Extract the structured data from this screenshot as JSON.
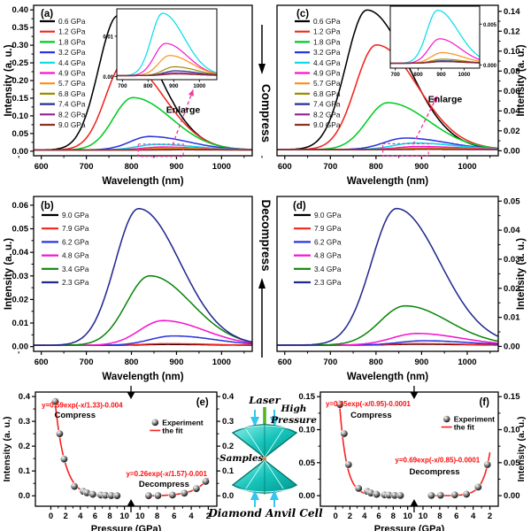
{
  "middle": {
    "compress": "Compress",
    "decompress": "Decompress"
  },
  "dac": {
    "laser": "Laser",
    "high_pressure": [
      "High",
      "Pressure"
    ],
    "samples": "Samples",
    "caption": "Diamond Anvil Cell"
  },
  "chart_data": [
    {
      "id": "a",
      "type": "line",
      "panel_label": "(a)",
      "xlabel": "Wavelength (nm)",
      "ylabel": "Intensity (a. u.)",
      "y_side": "left",
      "xlim": [
        583,
        1068
      ],
      "x_ticks": [
        600,
        700,
        800,
        900,
        1000
      ],
      "ylim": [
        -0.013,
        0.413
      ],
      "y_ticks": [
        0.0,
        0.05,
        0.1,
        0.15,
        0.2,
        0.25,
        0.3,
        0.35,
        0.4
      ],
      "y_decimals": 2,
      "sigma": [
        43,
        85
      ],
      "series": [
        {
          "label": "0.6 GPa",
          "color": "#000000",
          "peak_nm": 770,
          "peak_intensity": 0.38
        },
        {
          "label": "1.2 GPa",
          "color": "#f2231e",
          "peak_nm": 786,
          "peak_intensity": 0.25
        },
        {
          "label": "1.8 GPa",
          "color": "#00cc22",
          "peak_nm": 803,
          "peak_intensity": 0.148
        },
        {
          "label": "3.2 GPa",
          "color": "#2d35dd",
          "peak_nm": 840,
          "peak_intensity": 0.038
        },
        {
          "label": "4.4 GPa",
          "color": "#00dce8",
          "peak_nm": 856,
          "peak_intensity": 0.0155
        },
        {
          "label": "4.9 GPa",
          "color": "#f516cc",
          "peak_nm": 868,
          "peak_intensity": 0.008
        },
        {
          "label": "5.7 GPa",
          "color": "#ff8e1b",
          "peak_nm": 884,
          "peak_intensity": 0.005
        },
        {
          "label": "6.8 GPa",
          "color": "#9c8c00",
          "peak_nm": 902,
          "peak_intensity": 0.0022
        },
        {
          "label": "7.4 GPa",
          "color": "#26308f",
          "peak_nm": 906,
          "peak_intensity": 0.0012
        },
        {
          "label": "8.2 GPa",
          "color": "#922092",
          "peak_nm": 906,
          "peak_intensity": 0.0007
        },
        {
          "label": "9.0 GPa",
          "color": "#8c3128",
          "peak_nm": 906,
          "peak_intensity": 0.0004
        }
      ],
      "inset": {
        "xlim": [
          678,
          1068
        ],
        "x_ticks": [
          700,
          800,
          900,
          1000
        ],
        "ylim": [
          -0.0008,
          0.0168
        ],
        "y_ticks": [
          0.0,
          0.01
        ],
        "y_decimals": 2,
        "y_side": "left",
        "series_from": 4
      },
      "enlarge_label": "Enlarge",
      "zoom_box_nm": [
        815,
        915
      ]
    },
    {
      "id": "c",
      "type": "line",
      "panel_label": "(c)",
      "xlabel": "Wavelength (nm)",
      "ylabel": "Intensity (a. u.)",
      "y_side": "right",
      "xlim": [
        583,
        1068
      ],
      "x_ticks": [
        600,
        700,
        800,
        900,
        1000
      ],
      "ylim": [
        -0.005,
        0.146
      ],
      "y_ticks": [
        0.0,
        0.02,
        0.04,
        0.06,
        0.08,
        0.1,
        0.12,
        0.14
      ],
      "y_decimals": 2,
      "sigma": [
        46,
        90
      ],
      "series": [
        {
          "label": "0.6 GPa",
          "color": "#000000",
          "peak_nm": 780,
          "peak_intensity": 0.14
        },
        {
          "label": "1.2 GPa",
          "color": "#f2231e",
          "peak_nm": 801,
          "peak_intensity": 0.105
        },
        {
          "label": "1.8 GPa",
          "color": "#00cc22",
          "peak_nm": 826,
          "peak_intensity": 0.047
        },
        {
          "label": "3.2 GPa",
          "color": "#2d35dd",
          "peak_nm": 864,
          "peak_intensity": 0.0115
        },
        {
          "label": "4.4 GPa",
          "color": "#00dce8",
          "peak_nm": 884,
          "peak_intensity": 0.0065
        },
        {
          "label": "4.9 GPa",
          "color": "#f516cc",
          "peak_nm": 893,
          "peak_intensity": 0.003
        },
        {
          "label": "5.7 GPa",
          "color": "#ff8e1b",
          "peak_nm": 903,
          "peak_intensity": 0.0013
        },
        {
          "label": "6.8 GPa",
          "color": "#9c8c00",
          "peak_nm": 905,
          "peak_intensity": 0.0005
        },
        {
          "label": "7.4 GPa",
          "color": "#26308f",
          "peak_nm": 905,
          "peak_intensity": 0.0003
        },
        {
          "label": "8.2 GPa",
          "color": "#922092",
          "peak_nm": 905,
          "peak_intensity": 0.0002
        },
        {
          "label": "9.0 GPa",
          "color": "#8c3128",
          "peak_nm": 905,
          "peak_intensity": 0.0002
        }
      ],
      "inset": {
        "xlim": [
          678,
          1068
        ],
        "x_ticks": [
          700,
          800,
          900,
          1000
        ],
        "ylim": [
          -0.0004,
          0.0072
        ],
        "y_ticks": [
          0.0,
          0.005
        ],
        "y_decimals": 3,
        "y_side": "right",
        "series_from": 4
      },
      "enlarge_label": "Enlarge",
      "zoom_box_nm": [
        815,
        915
      ]
    },
    {
      "id": "b",
      "type": "line",
      "panel_label": "(b)",
      "xlabel": "Wavelength (nm)",
      "ylabel": "Intensity (a. u.)",
      "y_side": "left",
      "xlim": [
        583,
        1068
      ],
      "x_ticks": [
        600,
        700,
        800,
        900,
        1000
      ],
      "ylim": [
        -0.002,
        0.0637
      ],
      "y_ticks": [
        0.0,
        0.01,
        0.02,
        0.03,
        0.04,
        0.05,
        0.06
      ],
      "y_decimals": 2,
      "sigma": [
        52,
        92
      ],
      "series": [
        {
          "label": "9.0 GPa",
          "color": "#000000",
          "peak_nm": 880,
          "peak_intensity": 0.0004
        },
        {
          "label": "7.9 GPa",
          "color": "#f2231e",
          "peak_nm": 880,
          "peak_intensity": 0.0007
        },
        {
          "label": "6.2 GPa",
          "color": "#2d35dd",
          "peak_nm": 893,
          "peak_intensity": 0.004
        },
        {
          "label": "4.8 GPa",
          "color": "#f516cc",
          "peak_nm": 870,
          "peak_intensity": 0.0105
        },
        {
          "label": "3.4 GPa",
          "color": "#0c870c",
          "peak_nm": 841,
          "peak_intensity": 0.0295
        },
        {
          "label": "2.3 GPa",
          "color": "#232a8f",
          "peak_nm": 816,
          "peak_intensity": 0.058
        }
      ]
    },
    {
      "id": "d",
      "type": "line",
      "panel_label": "(d)",
      "xlabel": "Wavelength (nm)",
      "ylabel": "Intensity (a. u.)",
      "y_side": "right",
      "xlim": [
        583,
        1068
      ],
      "x_ticks": [
        600,
        700,
        800,
        900,
        1000
      ],
      "ylim": [
        -0.0017,
        0.0516
      ],
      "y_ticks": [
        0.0,
        0.01,
        0.02,
        0.03,
        0.04,
        0.05
      ],
      "y_decimals": 2,
      "sigma": [
        55,
        95
      ],
      "series": [
        {
          "label": "9.0 GPa",
          "color": "#000000",
          "peak_nm": 890,
          "peak_intensity": 0.0003
        },
        {
          "label": "7.9 GPa",
          "color": "#f2231e",
          "peak_nm": 890,
          "peak_intensity": 0.0005
        },
        {
          "label": "6.2 GPa",
          "color": "#2d35dd",
          "peak_nm": 905,
          "peak_intensity": 0.0015
        },
        {
          "label": "4.8 GPa",
          "color": "#f516cc",
          "peak_nm": 890,
          "peak_intensity": 0.004
        },
        {
          "label": "3.4 GPa",
          "color": "#0c870c",
          "peak_nm": 864,
          "peak_intensity": 0.0135
        },
        {
          "label": "2.3 GPa",
          "color": "#232a8f",
          "peak_nm": 845,
          "peak_intensity": 0.047
        }
      ]
    },
    {
      "id": "e",
      "type": "scatter",
      "panel_label": "(e)",
      "xlabel": "Pressure (GPa)",
      "ylabel": "Intensity (a. u.)",
      "ylabel_side": "left",
      "x_ticks_left": [
        0,
        2,
        4,
        6,
        8,
        10
      ],
      "x_ticks_right": [
        10,
        8,
        6,
        4,
        2
      ],
      "ylim": [
        -0.042,
        0.418
      ],
      "y_ticks": [
        0.0,
        0.1,
        0.2,
        0.3,
        0.4
      ],
      "y_decimals": 1,
      "legend": {
        "experiment": "Experiment",
        "fit": "the fit"
      },
      "compress": {
        "label": "Compress",
        "equation": "y=0.59exp(-x/1.33)-0.004",
        "fit": {
          "A": 0.59,
          "t": 1.33,
          "c": -0.004
        },
        "points": [
          [
            0.6,
            0.38
          ],
          [
            1.2,
            0.25
          ],
          [
            1.8,
            0.148
          ],
          [
            3.2,
            0.038
          ],
          [
            4.4,
            0.018
          ],
          [
            4.9,
            0.012
          ],
          [
            5.7,
            0.006
          ],
          [
            6.8,
            0.003
          ],
          [
            7.4,
            0.002
          ],
          [
            8.2,
            0.001
          ],
          [
            9.0,
            0.0005
          ]
        ]
      },
      "decompress": {
        "label": "Decompress",
        "equation": "y=0.26exp(-x/1.57)-0.001",
        "fit": {
          "A": 0.26,
          "t": 1.57,
          "c": -0.001
        },
        "points": [
          [
            9.0,
            0.0005
          ],
          [
            7.9,
            0.001
          ],
          [
            6.2,
            0.003
          ],
          [
            4.8,
            0.0105
          ],
          [
            3.4,
            0.029
          ],
          [
            2.3,
            0.058
          ]
        ]
      }
    },
    {
      "id": "f",
      "type": "scatter",
      "panel_label": "(f)",
      "xlabel": "Pressure (GPa)",
      "ylabel": "Intensity (a. u.)",
      "ylabel_side": "right",
      "x_ticks_left": [
        0,
        2,
        4,
        6,
        8,
        10
      ],
      "x_ticks_right": [
        10,
        8,
        6,
        4,
        2
      ],
      "ylim": [
        -0.016,
        0.157
      ],
      "y_ticks": [
        0.0,
        0.05,
        0.1,
        0.15
      ],
      "y_decimals": 2,
      "legend": {
        "experiment": "Experiment",
        "fit": "the fit"
      },
      "compress": {
        "label": "Compress",
        "equation": "y=0.25exp(-x/0.95)-0.0001",
        "fit": {
          "A": 0.25,
          "t": 0.95,
          "c": -0.0001
        },
        "points": [
          [
            0.6,
            0.138
          ],
          [
            1.2,
            0.094
          ],
          [
            1.8,
            0.047
          ],
          [
            3.2,
            0.011
          ],
          [
            4.4,
            0.0065
          ],
          [
            4.9,
            0.004
          ],
          [
            5.7,
            0.002
          ],
          [
            6.8,
            0.0012
          ],
          [
            7.4,
            0.0008
          ],
          [
            8.2,
            0.0005
          ],
          [
            9.0,
            0.0003
          ]
        ]
      },
      "decompress": {
        "label": "Decompress",
        "equation": "y=0.69exp(-x/0.85)-0.0001",
        "fit": {
          "A": 0.69,
          "t": 0.85,
          "c": -0.0001
        },
        "points": [
          [
            9.0,
            0.0003
          ],
          [
            7.9,
            0.0006
          ],
          [
            6.2,
            0.0012
          ],
          [
            4.8,
            0.0022
          ],
          [
            3.4,
            0.013
          ],
          [
            2.3,
            0.047
          ]
        ]
      }
    }
  ]
}
